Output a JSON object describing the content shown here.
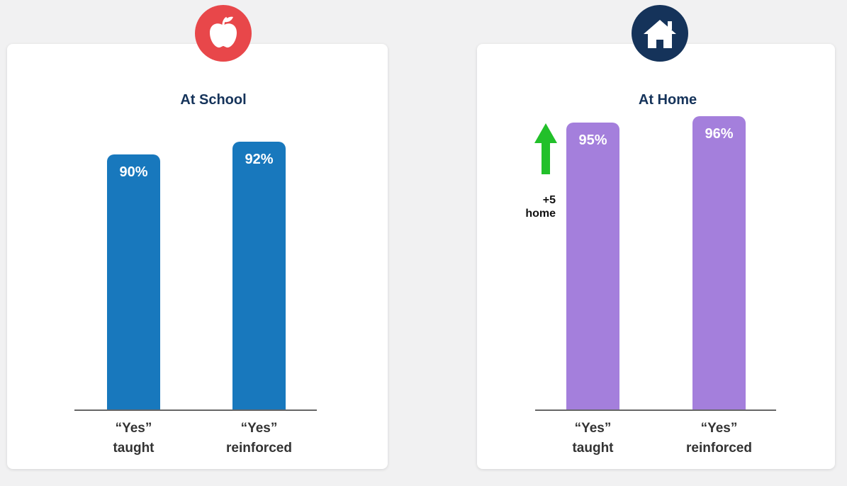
{
  "chart_data": [
    {
      "type": "bar",
      "title": "At School",
      "categories": [
        "“Yes”\ntaught",
        "“Yes”\nreinforced"
      ],
      "values": [
        90,
        92
      ],
      "value_labels": [
        "90%",
        "92%"
      ],
      "color": "#1878bd",
      "ylim": [
        50,
        100
      ]
    },
    {
      "type": "bar",
      "title": "At Home",
      "categories": [
        "“Yes”\ntaught",
        "“Yes”\nreinforced"
      ],
      "values": [
        95,
        96
      ],
      "value_labels": [
        "95%",
        "96%"
      ],
      "color": "#a47fdc",
      "ylim": [
        50,
        100
      ],
      "annotation": "+5\nhome"
    }
  ]
}
